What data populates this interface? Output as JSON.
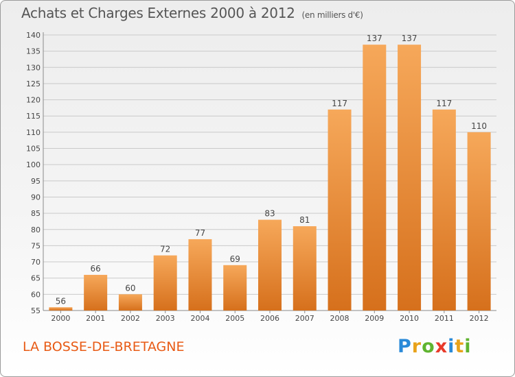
{
  "title": "Achats et Charges Externes 2000 à 2012",
  "subtitle": "(en milliers d'€)",
  "location": "LA BOSSE-DE-BRETAGNE",
  "logo": {
    "letters": [
      "P",
      "r",
      "o",
      "x",
      "i",
      "t",
      "i"
    ],
    "colors": [
      "#2a8ad8",
      "#e8a21a",
      "#5fb430",
      "#e83a2a",
      "#2a8ad8",
      "#e8a21a",
      "#5fb430"
    ]
  },
  "colors": {
    "bar_light": "#f6a85a",
    "bar_dark": "#d6701c",
    "location_text": "#e85a14"
  },
  "chart_data": {
    "type": "bar",
    "title": "Achats et Charges Externes 2000 à 2012",
    "subtitle": "(en milliers d'€)",
    "categories": [
      "2000",
      "2001",
      "2002",
      "2003",
      "2004",
      "2005",
      "2006",
      "2007",
      "2008",
      "2009",
      "2010",
      "2011",
      "2012"
    ],
    "values": [
      56,
      66,
      60,
      72,
      77,
      69,
      83,
      81,
      117,
      137,
      137,
      117,
      110
    ],
    "ylim": [
      55,
      140
    ],
    "yticks": [
      55,
      60,
      65,
      70,
      75,
      80,
      85,
      90,
      95,
      100,
      105,
      110,
      115,
      120,
      125,
      130,
      135,
      140
    ],
    "grid": true,
    "data_labels": true
  }
}
